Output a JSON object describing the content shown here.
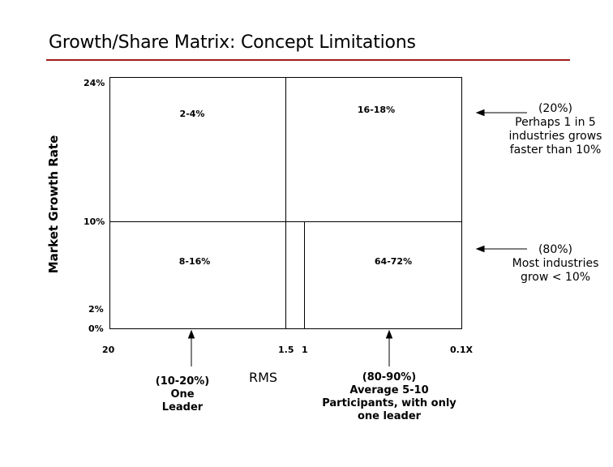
{
  "title": "Growth/Share Matrix: Concept Limitations",
  "colors": {
    "accent_rule": "#a31c1c",
    "text": "#000000"
  },
  "y_axis": {
    "label": "Market Growth Rate",
    "ticks": [
      "24%",
      "10%",
      "2%",
      "0%"
    ]
  },
  "x_axis": {
    "label": "RMS",
    "ticks": [
      "20",
      "1.5",
      "1",
      "0.1X"
    ]
  },
  "quadrants": {
    "top_left": "2-4%",
    "top_right": "16-18%",
    "bottom_left": "8-16%",
    "bottom_right": "64-72%"
  },
  "right_notes": {
    "top": [
      "(20%)",
      "Perhaps 1 in 5",
      "industries grows",
      "faster than 10%"
    ],
    "bottom": [
      "(80%)",
      "Most industries",
      "grow < 10%"
    ]
  },
  "bottom_notes": {
    "left": [
      "(10-20%)",
      "One",
      "Leader"
    ],
    "right": [
      "(80-90%)",
      "Average 5-10",
      "Participants, with only",
      "one leader"
    ]
  }
}
